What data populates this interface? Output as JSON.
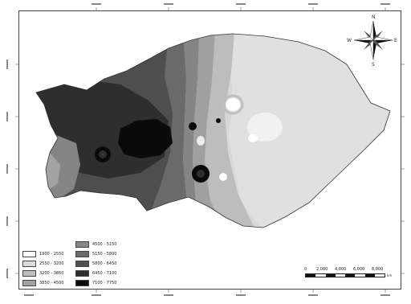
{
  "north_arrow": {
    "n": "N",
    "s": "S",
    "e": "E",
    "w": "W"
  },
  "legend": {
    "items": [
      {
        "label": "1900 - 2550",
        "color": "#ffffff"
      },
      {
        "label": "2550 - 3200",
        "color": "#dcdcdc"
      },
      {
        "label": "3200 - 3850",
        "color": "#bfbfbf"
      },
      {
        "label": "3850 - 4500",
        "color": "#a3a3a3"
      },
      {
        "label": "4500 - 5150",
        "color": "#888888"
      },
      {
        "label": "5150 - 5800",
        "color": "#6c6c6c"
      },
      {
        "label": "5800 - 6450",
        "color": "#4e4e4e"
      },
      {
        "label": "6450 - 7100",
        "color": "#2e2e2e"
      },
      {
        "label": "7100 - 7750",
        "color": "#0a0a0a"
      }
    ]
  },
  "scale_bar": {
    "ticks": [
      "0",
      "2,000",
      "4,000",
      "6,000",
      "8,000"
    ],
    "unit": "km"
  }
}
